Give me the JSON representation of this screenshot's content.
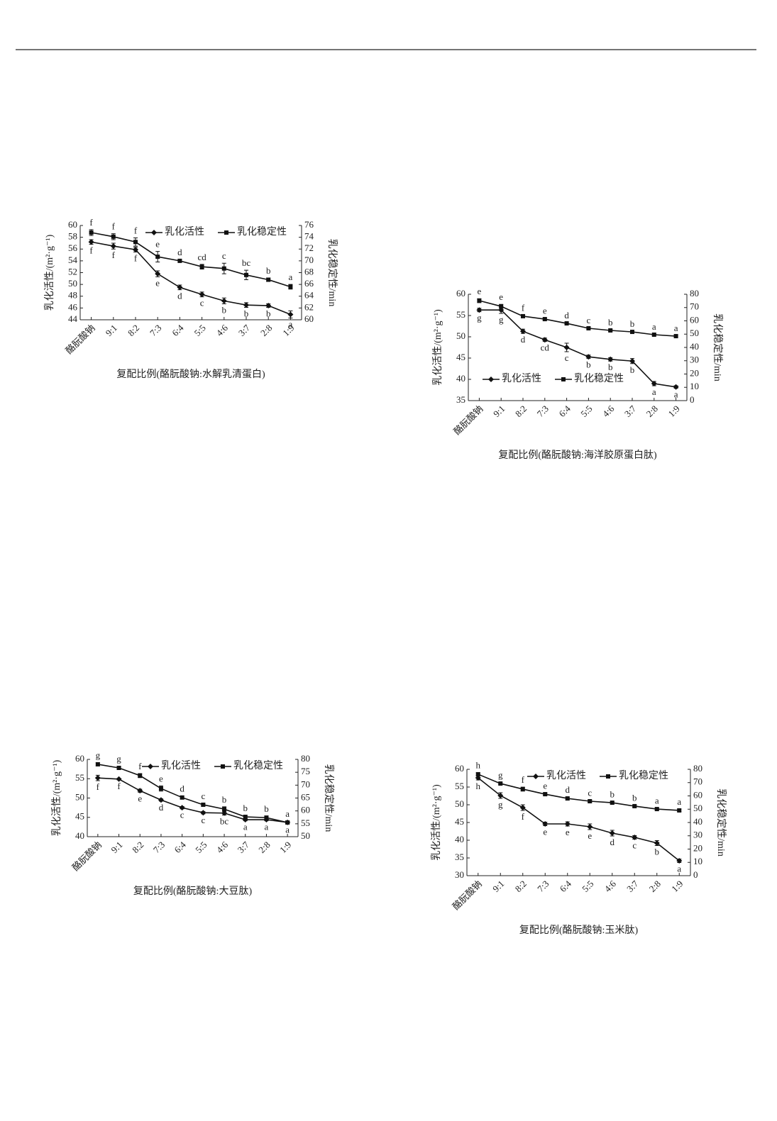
{
  "chart_data": [
    {
      "type": "line",
      "x_label": "复配比例(酪朊酸钠:水解乳清蛋白)",
      "y_label": "乳化活性/(m²·g⁻¹)",
      "y2_label": "乳化稳定性/min",
      "categories": [
        "酪朊酸钠",
        "9:1",
        "8:2",
        "7:3",
        "6:4",
        "5:5",
        "4:6",
        "3:7",
        "2:8",
        "1:9"
      ],
      "ylim": [
        44,
        60
      ],
      "yticks": [
        44,
        46,
        48,
        50,
        52,
        54,
        56,
        58,
        60
      ],
      "y2lim": [
        60,
        76
      ],
      "y2ticks": [
        60,
        62,
        64,
        66,
        68,
        70,
        72,
        74,
        76
      ],
      "legend": "upper right",
      "series": [
        {
          "name": "乳化活性",
          "color": "#111",
          "marker": "diamond",
          "values": [
            57.2,
            56.5,
            55.9,
            51.8,
            49.5,
            48.3,
            47.2,
            46.5,
            46.4,
            44.9
          ],
          "errors": [
            0.4,
            0.5,
            0.4,
            0.5,
            0.4,
            0.4,
            0.5,
            0.4,
            0.3,
            0.6
          ],
          "labels": [
            "f",
            "f",
            "f",
            "e",
            "d",
            "c",
            "b",
            "b",
            "b",
            "a"
          ]
        },
        {
          "name": "乳化稳定性",
          "color": "#111",
          "marker": "square",
          "axis": "y2",
          "values": [
            74.8,
            74.1,
            73.2,
            70.7,
            70.0,
            69.0,
            68.7,
            67.6,
            66.8,
            65.6
          ],
          "errors": [
            0.5,
            0.5,
            0.7,
            0.9,
            0.2,
            0.4,
            0.9,
            0.8,
            0.3,
            0.4
          ],
          "labels": [
            "f",
            "f",
            "f",
            "e",
            "d",
            "cd",
            "c",
            "bc",
            "b",
            "a"
          ]
        }
      ]
    },
    {
      "type": "line",
      "x_label": "复配比例(酪朊酸钠:海洋胶原蛋白肽)",
      "y_label": "乳化活性/(m²·g⁻¹)",
      "y2_label": "乳化稳定性/min",
      "categories": [
        "酪朊酸钠",
        "9:1",
        "8:2",
        "7:3",
        "6:4",
        "5:5",
        "4:6",
        "3:7",
        "2:8",
        "1:9"
      ],
      "ylim": [
        35,
        60
      ],
      "yticks": [
        35,
        40,
        45,
        50,
        55,
        60
      ],
      "y2lim": [
        0,
        80
      ],
      "y2ticks": [
        0,
        10,
        20,
        30,
        40,
        50,
        60,
        70,
        80
      ],
      "legend": "lower left",
      "series": [
        {
          "name": "乳化活性",
          "color": "#111",
          "marker": "diamond",
          "values": [
            56.3,
            56.3,
            51.3,
            49.3,
            47.5,
            45.3,
            44.7,
            44.3,
            39.0,
            38.2
          ],
          "errors": [
            0.4,
            0.8,
            0.5,
            0.4,
            1.0,
            0.4,
            0.4,
            0.6,
            0.5,
            0.3
          ],
          "labels": [
            "g",
            "g",
            "d",
            "cd",
            "c",
            "b",
            "b",
            "b",
            "a",
            "a"
          ]
        },
        {
          "name": "乳化稳定性",
          "color": "#111",
          "marker": "square",
          "axis": "y2",
          "values": [
            75.2,
            70.9,
            63.5,
            61.3,
            58.1,
            54.4,
            52.8,
            51.7,
            49.6,
            48.5
          ],
          "errors": [
            1.5,
            1.5,
            0.8,
            0.8,
            0.6,
            0.6,
            0.6,
            0.6,
            0.5,
            0.5
          ],
          "labels": [
            "e",
            "e",
            "f",
            "e",
            "d",
            "c",
            "b",
            "b",
            "a",
            "a"
          ]
        }
      ]
    },
    {
      "type": "line",
      "x_label": "复配比例(酪朊酸钠:大豆肽)",
      "y_label": "乳化活性/(m²·g⁻¹)",
      "y2_label": "乳化稳定性/min",
      "categories": [
        "酪朊酸钠",
        "9:1",
        "8:2",
        "7:3",
        "6:4",
        "5:5",
        "4:6",
        "3:7",
        "2:8",
        "1:9"
      ],
      "ylim": [
        40,
        60
      ],
      "yticks": [
        40,
        45,
        50,
        55,
        60
      ],
      "y2lim": [
        50,
        80
      ],
      "y2ticks": [
        50,
        55,
        60,
        65,
        70,
        75,
        80
      ],
      "legend": "upper right",
      "series": [
        {
          "name": "乳化活性",
          "color": "#111",
          "marker": "diamond",
          "values": [
            55.2,
            54.9,
            51.9,
            49.5,
            47.5,
            46.2,
            46.1,
            44.4,
            44.4,
            43.7
          ],
          "errors": [
            0.7,
            0.2,
            0.4,
            0.3,
            0.3,
            0.3,
            0.5,
            0.3,
            0.3,
            0.3
          ],
          "labels": [
            "f",
            "f",
            "e",
            "d",
            "c",
            "c",
            "bc",
            "a",
            "a",
            "a"
          ]
        },
        {
          "name": "乳化稳定性",
          "color": "#111",
          "marker": "square",
          "axis": "y2",
          "values": [
            78.1,
            76.7,
            73.7,
            68.7,
            65.2,
            62.4,
            60.7,
            57.7,
            57.4,
            55.5
          ],
          "errors": [
            0.6,
            0.7,
            0.8,
            1.0,
            0.6,
            0.5,
            0.9,
            0.6,
            0.6,
            0.5
          ],
          "labels": [
            "g",
            "g",
            "f",
            "e",
            "d",
            "c",
            "b",
            "b",
            "b",
            "a"
          ]
        }
      ]
    },
    {
      "type": "line",
      "x_label": "复配比例(酪朊酸钠:玉米肽)",
      "y_label": "乳化活性/(m²·g⁻¹)",
      "y2_label": "乳化稳定性/min",
      "categories": [
        "酪朊酸钠",
        "9:1",
        "8:2",
        "7:3",
        "6:4",
        "5:5",
        "4:6",
        "3:7",
        "2:8",
        "1:9"
      ],
      "ylim": [
        30,
        60
      ],
      "yticks": [
        30,
        35,
        40,
        45,
        50,
        55,
        60
      ],
      "y2lim": [
        0,
        80
      ],
      "y2ticks": [
        0,
        10,
        20,
        30,
        40,
        50,
        60,
        70,
        80
      ],
      "legend": "upper center",
      "series": [
        {
          "name": "乳化活性",
          "color": "#111",
          "marker": "diamond",
          "values": [
            57.6,
            52.6,
            49.2,
            44.6,
            44.6,
            43.8,
            42.0,
            40.8,
            39.2,
            34.2
          ],
          "errors": [
            0.6,
            0.8,
            0.8,
            0.5,
            0.6,
            0.8,
            0.8,
            0.5,
            0.7,
            0.5
          ],
          "labels": [
            "h",
            "g",
            "f",
            "e",
            "e",
            "e",
            "d",
            "c",
            "b",
            "a"
          ]
        },
        {
          "name": "乳化稳定性",
          "color": "#111",
          "marker": "square",
          "axis": "y2",
          "values": [
            76.3,
            69.3,
            65.1,
            61.3,
            58.1,
            56.0,
            54.9,
            52.3,
            50.1,
            49.1
          ],
          "errors": [
            1.2,
            0.8,
            1.5,
            0.9,
            1.0,
            0.8,
            0.9,
            0.8,
            0.7,
            0.9
          ],
          "labels": [
            "h",
            "g",
            "f",
            "e",
            "d",
            "c",
            "b",
            "b",
            "a",
            "a"
          ]
        }
      ]
    }
  ]
}
